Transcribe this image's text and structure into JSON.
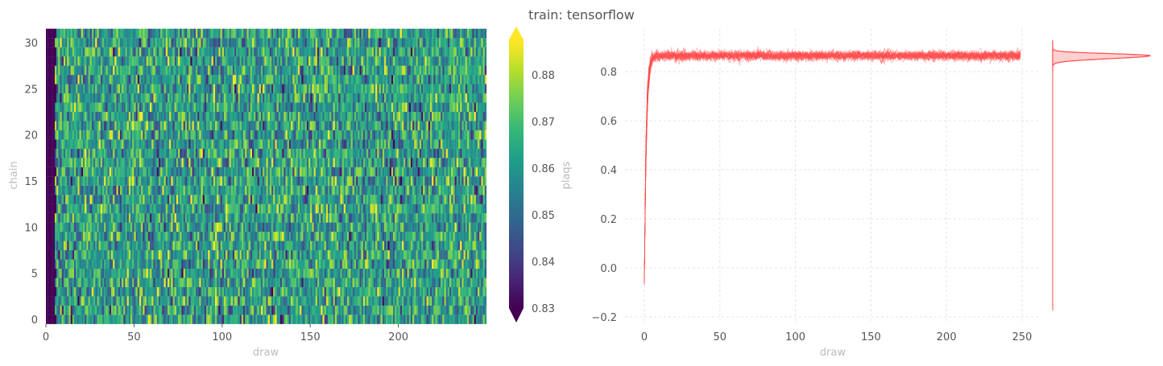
{
  "chart_data": [
    {
      "type": "heatmap",
      "title": "train: tensorflow",
      "xlabel": "draw",
      "ylabel": "chain",
      "xlim": [
        0,
        250
      ],
      "ylim": [
        -0.5,
        31.5
      ],
      "n_chains": 32,
      "n_draws": 250,
      "xticks": [
        "0",
        "50",
        "100",
        "150",
        "200"
      ],
      "yticks": [
        "0",
        "5",
        "10",
        "15",
        "20",
        "25",
        "30"
      ],
      "value_summary": {
        "mean": 0.862,
        "std": 0.011,
        "burn_in_draws": 5,
        "burn_in_value": 0.8
      },
      "colorbar": {
        "label": "plaqs",
        "colormap": "viridis",
        "range": [
          0.83,
          0.8875
        ],
        "extend": "both",
        "ticks": [
          "0.83",
          "0.84",
          "0.85",
          "0.86",
          "0.87",
          "0.88"
        ]
      }
    },
    {
      "type": "line",
      "xlabel": "draw",
      "ylabel": "",
      "xlim": [
        -12,
        262
      ],
      "ylim": [
        -0.22,
        0.93
      ],
      "xticks": [
        "0",
        "50",
        "100",
        "150",
        "200",
        "250"
      ],
      "yticks": [
        "−0.2",
        "0.0",
        "0.2",
        "0.4",
        "0.6",
        "0.8"
      ],
      "grid": true,
      "color": "#ff4b4b",
      "n_series": 32,
      "series_summary": {
        "start": -0.07,
        "plateau": 0.865,
        "noise": 0.01,
        "rise_draws": 6
      },
      "marginal": {
        "type": "kde",
        "peak": 0.865,
        "color": "#ff4b4b"
      }
    }
  ]
}
